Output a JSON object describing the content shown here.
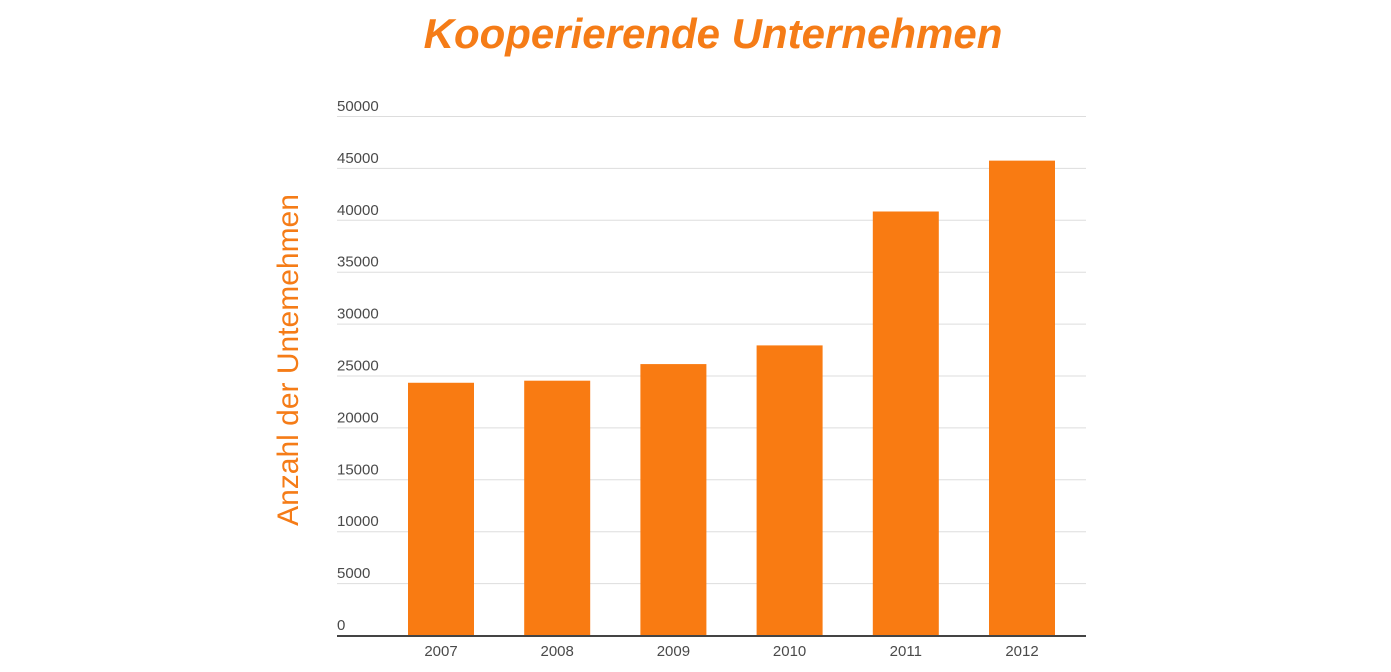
{
  "chart_data": {
    "type": "bar",
    "title": "Kooperierende Unternehmen",
    "xlabel": "",
    "ylabel": "Anzahl der Untemehmen",
    "categories": [
      "2007",
      "2008",
      "2009",
      "2010",
      "2011",
      "2012"
    ],
    "values": [
      24300,
      24500,
      26100,
      27900,
      40800,
      45700
    ],
    "ylim": [
      0,
      50000
    ],
    "yticks": [
      "0",
      "5000",
      "10000",
      "15000",
      "20000",
      "25000",
      "30000",
      "35000",
      "40000",
      "45000",
      "50000"
    ],
    "grid": true,
    "legend": "none",
    "bar_color": "#f97b12",
    "grid_color": "#dddddd",
    "axis_color": "#444444"
  }
}
